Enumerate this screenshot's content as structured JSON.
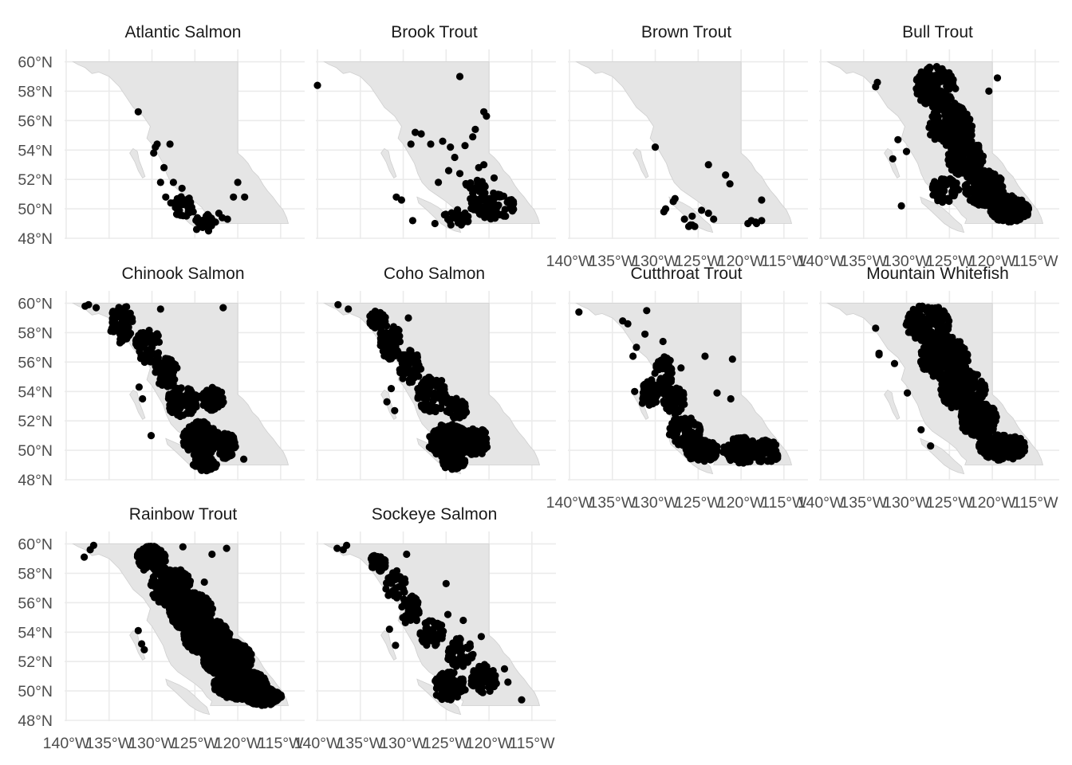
{
  "figure": {
    "crs": "lon/lat (degrees)",
    "xlim": [
      -140,
      -113.5
    ],
    "ylim": [
      48,
      60.3
    ],
    "x_ticks": [
      -140,
      -135,
      -130,
      -125,
      -120,
      -115
    ],
    "y_ticks": [
      48,
      50,
      52,
      54,
      56,
      58,
      60
    ],
    "x_tick_labels": [
      "140°W",
      "135°W",
      "130°W",
      "125°W",
      "120°W",
      "115°W"
    ],
    "y_tick_labels": [
      "48°N",
      "50°N",
      "52°N",
      "54°N",
      "56°N",
      "58°N",
      "60°N"
    ],
    "background": "#ffffff",
    "land_color": "#e5e5e5",
    "point_color": "#000000",
    "grid": true,
    "layout": {
      "columns": 4,
      "rows": 3
    }
  },
  "panels": [
    {
      "title": "Atlantic Salmon",
      "density": "low",
      "show_x_labels": false,
      "show_y_labels": true,
      "points": [
        [
          -131.6,
          56.6
        ],
        [
          -129.4,
          54.4
        ],
        [
          -129.6,
          54.2
        ],
        [
          -127.9,
          54.4
        ],
        [
          -129.8,
          53.8
        ],
        [
          -128.6,
          52.8
        ],
        [
          -129.0,
          51.8
        ],
        [
          -127.5,
          51.8
        ],
        [
          -126.5,
          51.4
        ],
        [
          -120.0,
          51.8
        ],
        [
          -119.2,
          50.8
        ],
        [
          -120.5,
          50.8
        ],
        [
          -128.4,
          50.8
        ],
        [
          -127.8,
          50.4
        ],
        [
          -127.0,
          50.6
        ],
        [
          -126.4,
          50.3
        ],
        [
          -125.8,
          50.1
        ],
        [
          -125.2,
          49.8
        ],
        [
          -124.7,
          49.4
        ],
        [
          -124.2,
          49.1
        ],
        [
          -123.8,
          49.0
        ],
        [
          -124.8,
          48.6
        ],
        [
          -123.4,
          48.5
        ],
        [
          -122.6,
          49.1
        ],
        [
          -121.8,
          49.4
        ],
        [
          -121.2,
          49.3
        ],
        [
          -122.2,
          49.7
        ]
      ],
      "clusters": [
        [
          -126.2,
          50.2,
          1.3,
          0.8,
          28
        ],
        [
          -123.8,
          49.2,
          1.1,
          0.5,
          22
        ]
      ]
    },
    {
      "title": "Brook Trout",
      "density": "low",
      "show_x_labels": false,
      "show_y_labels": false,
      "points": [
        [
          -140.0,
          58.4
        ],
        [
          -123.4,
          59.0
        ],
        [
          -120.6,
          56.6
        ],
        [
          -120.3,
          56.3
        ],
        [
          -129.1,
          54.4
        ],
        [
          -128.6,
          55.2
        ],
        [
          -127.9,
          55.1
        ],
        [
          -126.8,
          54.4
        ],
        [
          -125.4,
          54.6
        ],
        [
          -124.5,
          54.2
        ],
        [
          -124.0,
          53.5
        ],
        [
          -122.8,
          54.3
        ],
        [
          -121.6,
          55.4
        ],
        [
          -121.9,
          54.9
        ],
        [
          -123.4,
          52.4
        ],
        [
          -124.7,
          52.6
        ],
        [
          -125.9,
          51.8
        ],
        [
          -122.3,
          51.5
        ],
        [
          -121.2,
          52.8
        ],
        [
          -120.6,
          53.0
        ],
        [
          -119.4,
          52.1
        ],
        [
          -130.8,
          50.8
        ],
        [
          -130.2,
          50.6
        ],
        [
          -128.9,
          49.2
        ],
        [
          -126.3,
          49.0
        ],
        [
          -124.8,
          49.3
        ]
      ],
      "clusters": [
        [
          -119.6,
          50.2,
          2.6,
          0.9,
          70
        ],
        [
          -123.8,
          49.4,
          1.6,
          0.6,
          30
        ],
        [
          -121.6,
          51.4,
          1.2,
          0.9,
          25
        ]
      ]
    },
    {
      "title": "Brown Trout",
      "density": "low",
      "show_x_labels": true,
      "show_y_labels": false,
      "points": [
        [
          -130.0,
          54.2
        ],
        [
          -123.8,
          53.0
        ],
        [
          -121.8,
          52.3
        ],
        [
          -121.3,
          51.7
        ],
        [
          -127.7,
          50.7
        ],
        [
          -127.9,
          50.5
        ],
        [
          -128.8,
          50.0
        ],
        [
          -129.0,
          49.8
        ],
        [
          -124.6,
          49.9
        ],
        [
          -123.8,
          49.7
        ],
        [
          -123.2,
          49.3
        ],
        [
          -125.7,
          49.5
        ],
        [
          -126.6,
          49.3
        ],
        [
          -126.1,
          48.8
        ],
        [
          -125.9,
          48.9
        ],
        [
          -125.4,
          48.8
        ],
        [
          -125.7,
          48.9
        ],
        [
          -119.2,
          49.0
        ],
        [
          -118.8,
          49.2
        ],
        [
          -118.3,
          49.1
        ],
        [
          -117.6,
          49.2
        ],
        [
          -117.6,
          50.6
        ],
        [
          -118.2,
          49.0
        ]
      ],
      "clusters": []
    },
    {
      "title": "Bull Trout",
      "density": "high",
      "show_x_labels": true,
      "show_y_labels": false,
      "points": [
        [
          -133.4,
          58.6
        ],
        [
          -133.6,
          58.3
        ],
        [
          -130.0,
          53.9
        ],
        [
          -131.0,
          54.7
        ],
        [
          -131.6,
          53.4
        ],
        [
          -120.4,
          58.0
        ],
        [
          -119.4,
          58.9
        ],
        [
          -130.6,
          50.2
        ]
      ],
      "clusters": [
        [
          -126.6,
          58.3,
          2.4,
          1.4,
          170
        ],
        [
          -124.8,
          55.6,
          2.6,
          1.6,
          190
        ],
        [
          -123.1,
          53.4,
          2.1,
          1.3,
          170
        ],
        [
          -120.9,
          51.4,
          2.3,
          1.2,
          170
        ],
        [
          -118.0,
          50.0,
          2.4,
          0.9,
          150
        ],
        [
          -125.5,
          51.3,
          1.6,
          0.9,
          60
        ]
      ]
    },
    {
      "title": "Chinook Salmon",
      "density": "medium",
      "show_x_labels": false,
      "show_y_labels": true,
      "points": [
        [
          -137.4,
          59.9
        ],
        [
          -136.5,
          59.7
        ],
        [
          -137.8,
          59.8
        ],
        [
          -129.0,
          59.6
        ],
        [
          -130.1,
          51.0
        ],
        [
          -131.5,
          54.3
        ],
        [
          -131.1,
          53.5
        ],
        [
          -119.3,
          49.4
        ],
        [
          -121.7,
          59.7
        ]
      ],
      "clusters": [
        [
          -133.6,
          58.6,
          1.4,
          1.3,
          70
        ],
        [
          -130.4,
          57.0,
          1.6,
          1.2,
          80
        ],
        [
          -128.3,
          55.3,
          1.4,
          1.0,
          70
        ],
        [
          -126.5,
          53.3,
          1.8,
          1.0,
          90
        ],
        [
          -123.0,
          53.5,
          1.4,
          0.8,
          60
        ],
        [
          -124.3,
          50.8,
          2.1,
          1.2,
          160
        ],
        [
          -121.3,
          50.3,
          1.1,
          0.9,
          70
        ],
        [
          -123.8,
          49.1,
          1.4,
          0.5,
          70
        ]
      ]
    },
    {
      "title": "Coho Salmon",
      "density": "medium",
      "show_x_labels": false,
      "show_y_labels": false,
      "points": [
        [
          -137.6,
          59.9
        ],
        [
          -136.4,
          59.6
        ],
        [
          -129.4,
          59.0
        ],
        [
          -131.4,
          54.2
        ],
        [
          -131.9,
          53.3
        ],
        [
          -131.0,
          52.7
        ]
      ],
      "clusters": [
        [
          -133.0,
          58.9,
          1.0,
          0.6,
          50
        ],
        [
          -131.5,
          57.4,
          1.3,
          1.2,
          70
        ],
        [
          -129.2,
          55.7,
          1.3,
          1.1,
          70
        ],
        [
          -126.6,
          53.8,
          1.8,
          1.2,
          100
        ],
        [
          -123.8,
          52.8,
          1.2,
          0.8,
          60
        ],
        [
          -124.7,
          50.6,
          2.4,
          1.2,
          170
        ],
        [
          -121.5,
          50.6,
          1.4,
          1.0,
          80
        ],
        [
          -124.2,
          49.2,
          1.4,
          0.5,
          80
        ]
      ]
    },
    {
      "title": "Cutthroat Trout",
      "density": "medium",
      "show_x_labels": true,
      "show_y_labels": false,
      "points": [
        [
          -138.9,
          59.4
        ],
        [
          -131.0,
          59.5
        ],
        [
          -133.2,
          58.6
        ],
        [
          -133.8,
          58.8
        ],
        [
          -131.2,
          57.9
        ],
        [
          -132.6,
          56.4
        ],
        [
          -132.2,
          57.0
        ],
        [
          -132.4,
          54.0
        ],
        [
          -131.5,
          53.2
        ],
        [
          -124.2,
          56.4
        ],
        [
          -121.0,
          56.2
        ],
        [
          -129.1,
          57.4
        ],
        [
          -127.0,
          55.6
        ],
        [
          -122.8,
          53.9
        ],
        [
          -121.2,
          53.5
        ]
      ],
      "clusters": [
        [
          -129.0,
          55.3,
          1.1,
          1.1,
          60
        ],
        [
          -130.5,
          53.9,
          1.1,
          0.9,
          50
        ],
        [
          -127.8,
          53.4,
          1.3,
          1.0,
          60
        ],
        [
          -126.6,
          51.3,
          1.9,
          1.0,
          100
        ],
        [
          -124.6,
          50.0,
          1.9,
          0.8,
          110
        ],
        [
          -119.8,
          50.0,
          2.3,
          0.9,
          110
        ],
        [
          -117.0,
          49.9,
          1.5,
          0.8,
          80
        ]
      ]
    },
    {
      "title": "Mountain Whitefish",
      "density": "high",
      "show_x_labels": true,
      "show_y_labels": false,
      "points": [
        [
          -133.6,
          58.3
        ],
        [
          -133.2,
          56.6
        ],
        [
          -131.4,
          55.9
        ],
        [
          -133.2,
          56.5
        ],
        [
          -129.9,
          53.9
        ],
        [
          -128.3,
          51.4
        ],
        [
          -127.2,
          50.3
        ]
      ],
      "clusters": [
        [
          -127.6,
          58.6,
          2.6,
          1.3,
          190
        ],
        [
          -125.6,
          56.3,
          2.8,
          1.5,
          230
        ],
        [
          -123.4,
          54.1,
          2.6,
          1.4,
          210
        ],
        [
          -121.6,
          52.1,
          2.2,
          1.2,
          170
        ],
        [
          -118.8,
          50.2,
          2.8,
          0.9,
          170
        ]
      ]
    },
    {
      "title": "Rainbow Trout",
      "density": "high",
      "show_x_labels": true,
      "show_y_labels": true,
      "points": [
        [
          -137.9,
          59.1
        ],
        [
          -136.8,
          59.9
        ],
        [
          -137.2,
          59.6
        ],
        [
          -131.6,
          54.1
        ],
        [
          -131.2,
          53.2
        ],
        [
          -130.9,
          52.8
        ],
        [
          -121.3,
          59.7
        ],
        [
          -123.0,
          59.3
        ],
        [
          -126.4,
          59.8
        ],
        [
          -123.9,
          57.4
        ]
      ],
      "clusters": [
        [
          -130.1,
          59.0,
          1.7,
          0.9,
          110
        ],
        [
          -127.8,
          57.1,
          2.4,
          1.3,
          210
        ],
        [
          -125.5,
          55.4,
          2.6,
          1.3,
          270
        ],
        [
          -123.6,
          53.7,
          2.7,
          1.2,
          310
        ],
        [
          -121.2,
          52.2,
          2.9,
          1.2,
          340
        ],
        [
          -119.6,
          50.4,
          3.2,
          1.0,
          340
        ],
        [
          -117.0,
          49.6,
          2.1,
          0.6,
          150
        ]
      ]
    },
    {
      "title": "Sockeye Salmon",
      "density": "medium",
      "show_x_labels": true,
      "show_y_labels": false,
      "points": [
        [
          -137.7,
          59.7
        ],
        [
          -136.6,
          59.9
        ],
        [
          -137.0,
          59.6
        ],
        [
          -129.6,
          59.3
        ],
        [
          -125.0,
          57.3
        ],
        [
          -124.8,
          55.2
        ],
        [
          -123.0,
          54.8
        ],
        [
          -131.6,
          54.2
        ],
        [
          -130.9,
          53.1
        ],
        [
          -120.9,
          53.7
        ],
        [
          -118.2,
          51.5
        ],
        [
          -117.8,
          50.6
        ],
        [
          -116.2,
          49.4
        ]
      ],
      "clusters": [
        [
          -133.0,
          58.7,
          1.0,
          0.6,
          40
        ],
        [
          -130.9,
          57.2,
          1.2,
          1.0,
          40
        ],
        [
          -129.2,
          55.5,
          1.1,
          1.0,
          50
        ],
        [
          -126.7,
          54.0,
          1.4,
          1.0,
          50
        ],
        [
          -123.5,
          52.6,
          1.7,
          1.0,
          60
        ],
        [
          -124.6,
          50.3,
          1.9,
          1.0,
          100
        ],
        [
          -120.6,
          50.8,
          1.6,
          1.0,
          70
        ]
      ]
    }
  ]
}
